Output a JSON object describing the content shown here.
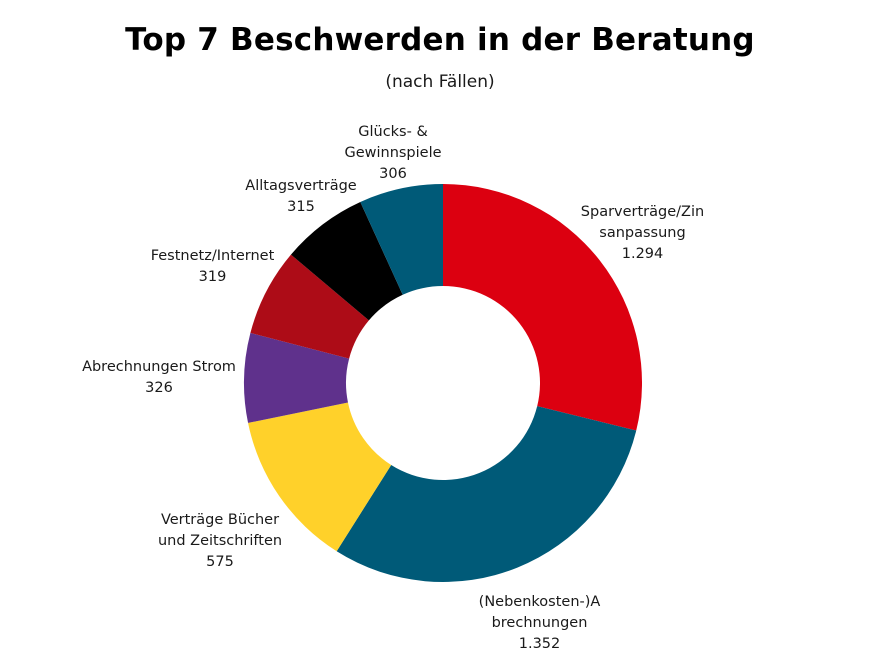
{
  "chart_data": {
    "type": "pie",
    "variant": "donut",
    "title": "Top 7 Beschwerden in der Beratung",
    "subtitle": "(nach Fällen)",
    "slices": [
      {
        "label": "Sparverträge/Zin\nsanpassung",
        "value": 1294,
        "value_label": "1.294",
        "color": "#dc0010"
      },
      {
        "label": "(Nebenkosten-)A\nbrechnungen",
        "value": 1352,
        "value_label": "1.352",
        "color": "#005a78"
      },
      {
        "label": "Verträge Bücher\nund Zeitschriften",
        "value": 575,
        "value_label": "575",
        "color": "#ffd12a"
      },
      {
        "label": "Abrechnungen Strom",
        "value": 326,
        "value_label": "326",
        "color": "#5f318c"
      },
      {
        "label": "Festnetz/Internet",
        "value": 319,
        "value_label": "319",
        "color": "#ad0c17"
      },
      {
        "label": "Alltagsverträge",
        "value": 315,
        "value_label": "315",
        "color": "#000000"
      },
      {
        "label": "Glücks- &\nGewinnspiele",
        "value": 306,
        "value_label": "306",
        "color": "#005a78"
      }
    ]
  }
}
